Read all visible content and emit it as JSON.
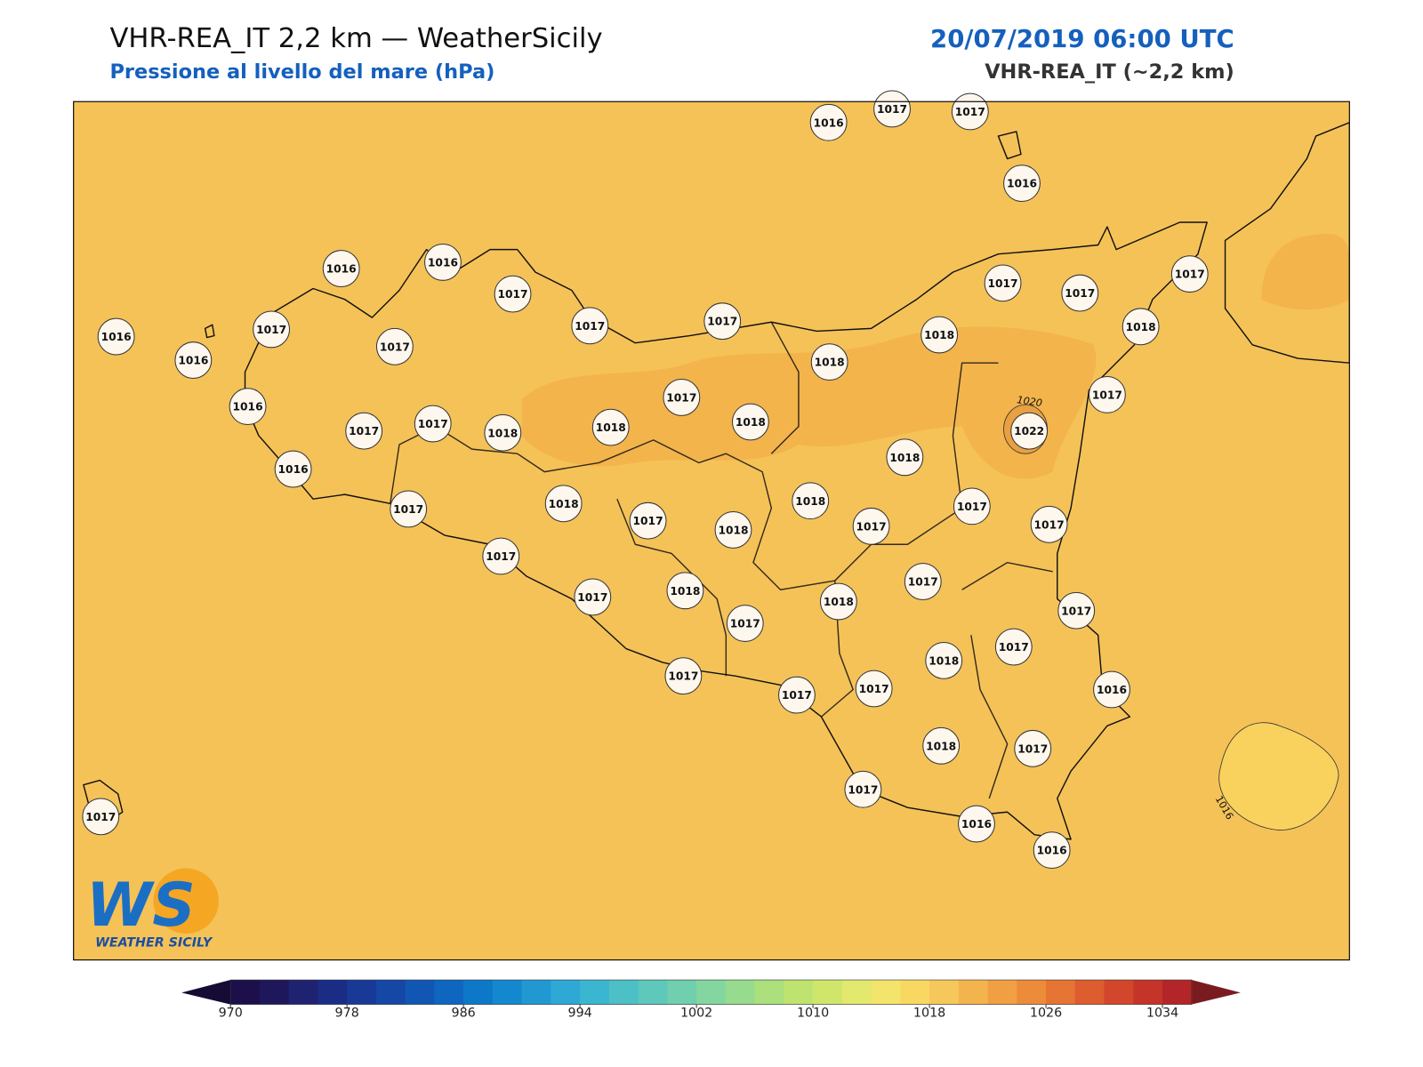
{
  "header": {
    "title": "VHR-REA_IT 2,2 km — WeatherSicily",
    "subtitle": "Pressione al livello del mare (hPa)",
    "datetime": "20/07/2019 06:00 UTC",
    "model": "VHR-REA_IT (~2,2 km)"
  },
  "stations": [
    1016,
    1017,
    1017,
    1016,
    1016,
    1016,
    1017,
    1017,
    1017,
    1017,
    1017,
    1017,
    1016,
    1016,
    1017,
    1017,
    1018,
    1018,
    1018,
    1017,
    1017,
    1016,
    1017,
    1017,
    1018,
    1018,
    1018,
    1022,
    1018,
    1016,
    1017,
    1018,
    1018,
    1017,
    1017,
    1018,
    1017,
    1017,
    1017,
    1017,
    1017,
    1018,
    1018,
    1017,
    1017,
    1017,
    1018,
    1017,
    1017,
    1017,
    1016,
    1018,
    1017,
    1017,
    1016,
    1016,
    1017
  ],
  "contour_labels": [
    1020,
    1016
  ],
  "colorbar": {
    "clim": [
      970,
      1036
    ],
    "ticks": [
      970,
      978,
      986,
      994,
      1002,
      1010,
      1018,
      1026,
      1034
    ],
    "colors": [
      "#1c0f4a",
      "#1e175c",
      "#1f2270",
      "#1b2c84",
      "#183a96",
      "#1547a6",
      "#1256b4",
      "#0f66c0",
      "#0d78c8",
      "#1488cf",
      "#2298d3",
      "#2ea8d4",
      "#3bb6d0",
      "#4cc0c6",
      "#5ec8bb",
      "#70cfae",
      "#84d6a0",
      "#97dc8e",
      "#abe07c",
      "#bee46f",
      "#d0e66b",
      "#e3e86f",
      "#f3e46c",
      "#f9d862",
      "#f6c75a",
      "#f3b44e",
      "#f0a043",
      "#ec8b3a",
      "#e67433",
      "#dd5d2e",
      "#d2472b",
      "#c43429",
      "#b32528"
    ]
  },
  "logo": {
    "mark": "WS",
    "name": "WEATHER SICILY"
  }
}
